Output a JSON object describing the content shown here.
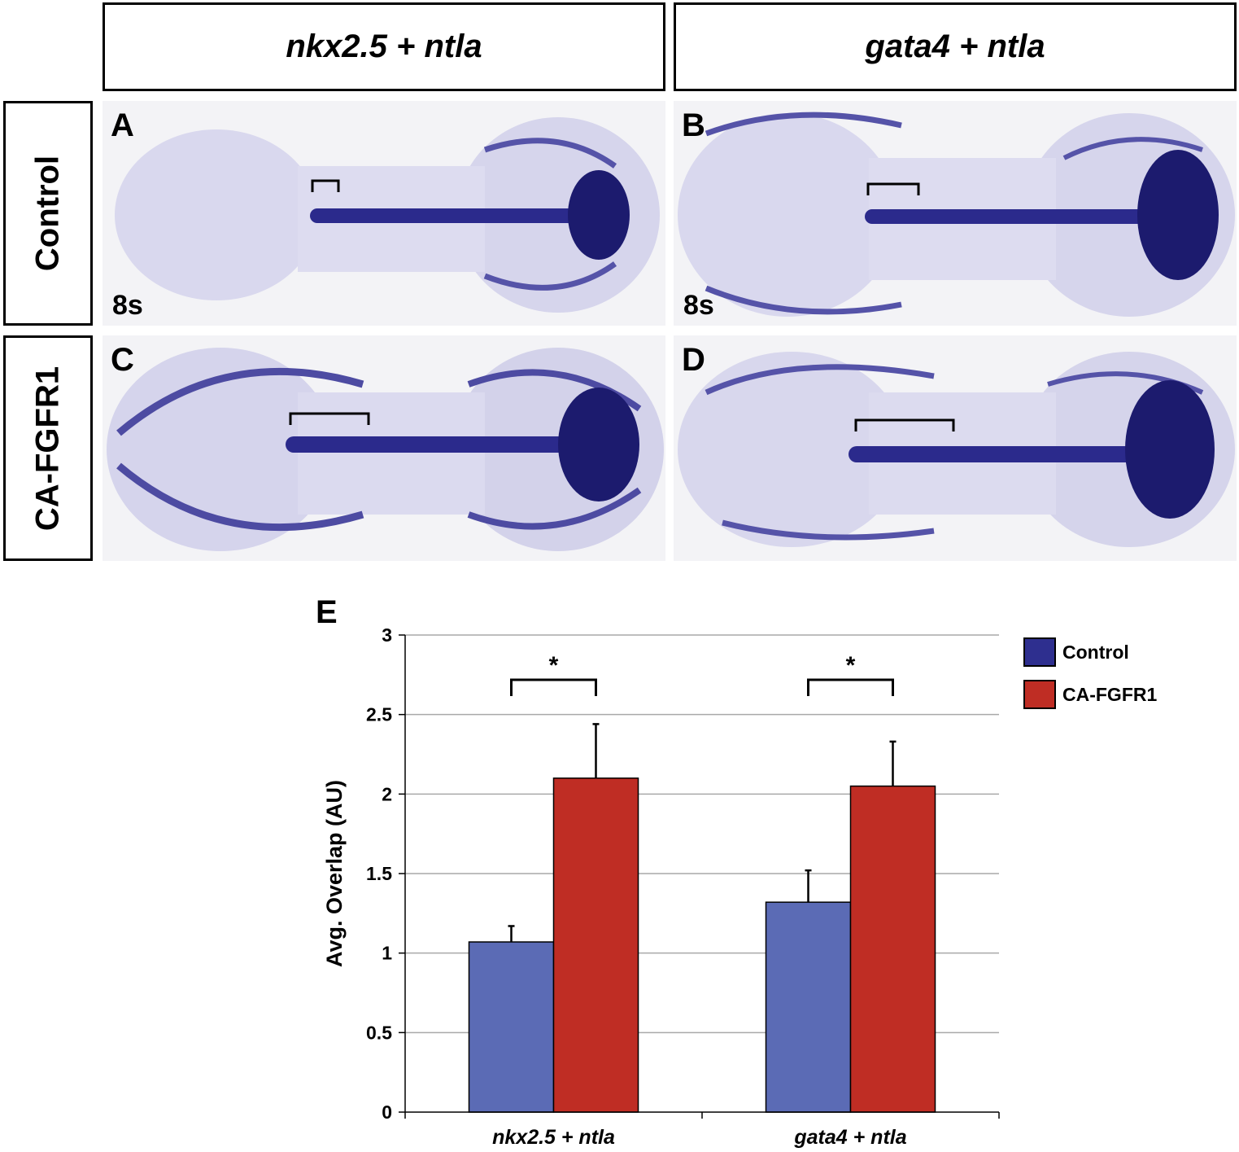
{
  "columns": [
    "nkx2.5 + ntla",
    "gata4 + ntla"
  ],
  "rows": [
    "Control",
    "CA-FGFR1"
  ],
  "panels": {
    "a": {
      "letter": "A",
      "stage": "8s"
    },
    "b": {
      "letter": "B",
      "stage": "8s"
    },
    "c": {
      "letter": "C"
    },
    "d": {
      "letter": "D"
    }
  },
  "stain_color": "#2b2a8c",
  "chart_panel_letter": "E",
  "chart_data": {
    "type": "bar",
    "categories": [
      "nkx2.5 + ntla",
      "gata4 + ntla"
    ],
    "series": [
      {
        "name": "Control",
        "values": [
          1.07,
          1.32
        ],
        "errors": [
          0.1,
          0.2
        ],
        "color": "#5b6bb5"
      },
      {
        "name": "CA-FGFR1",
        "values": [
          2.1,
          2.05
        ],
        "errors": [
          0.34,
          0.28
        ],
        "color": "#bf2d24"
      }
    ],
    "ylabel": "Avg. Overlap (AU)",
    "xlabel": "",
    "ylim": [
      0,
      3
    ],
    "yticks": [
      "0",
      "0.5",
      "1",
      "1.5",
      "2",
      "2.5",
      "3"
    ],
    "grid": true,
    "legend_position": "right",
    "significance": [
      "*",
      "*"
    ]
  }
}
